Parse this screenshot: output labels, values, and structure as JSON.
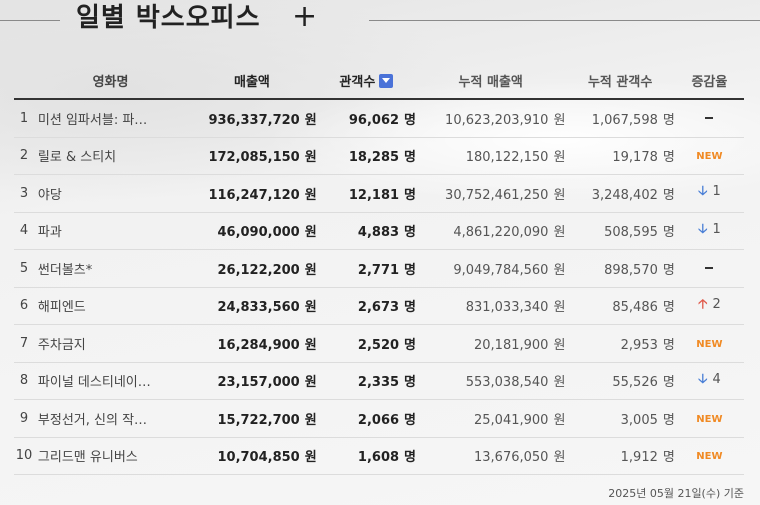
{
  "header": {
    "title": "일별 박스오피스",
    "add_label": "+"
  },
  "table": {
    "columns": {
      "title": "영화명",
      "sales": "매출액",
      "audience": "관객수",
      "cum_sales": "누적 매출액",
      "cum_audience": "누적 관객수",
      "change": "증감율"
    },
    "won_unit": "원",
    "person_unit": "명",
    "rows": [
      {
        "rank": "1",
        "title": "미션 임파서블: 파…",
        "sales": "936,337,720",
        "audience": "96,062",
        "cum_sales": "10,623,203,910",
        "cum_audience": "1,067,598",
        "change_type": "none",
        "change_value": ""
      },
      {
        "rank": "2",
        "title": "릴로 & 스티치",
        "sales": "172,085,150",
        "audience": "18,285",
        "cum_sales": "180,122,150",
        "cum_audience": "19,178",
        "change_type": "new",
        "change_value": "NEW"
      },
      {
        "rank": "3",
        "title": "야당",
        "sales": "116,247,120",
        "audience": "12,181",
        "cum_sales": "30,752,461,250",
        "cum_audience": "3,248,402",
        "change_type": "down",
        "change_value": "1"
      },
      {
        "rank": "4",
        "title": "파과",
        "sales": "46,090,000",
        "audience": "4,883",
        "cum_sales": "4,861,220,090",
        "cum_audience": "508,595",
        "change_type": "down",
        "change_value": "1"
      },
      {
        "rank": "5",
        "title": "썬더볼츠*",
        "sales": "26,122,200",
        "audience": "2,771",
        "cum_sales": "9,049,784,560",
        "cum_audience": "898,570",
        "change_type": "none",
        "change_value": ""
      },
      {
        "rank": "6",
        "title": "해피엔드",
        "sales": "24,833,560",
        "audience": "2,673",
        "cum_sales": "831,033,340",
        "cum_audience": "85,486",
        "change_type": "up",
        "change_value": "2"
      },
      {
        "rank": "7",
        "title": "주차금지",
        "sales": "16,284,900",
        "audience": "2,520",
        "cum_sales": "20,181,900",
        "cum_audience": "2,953",
        "change_type": "new",
        "change_value": "NEW"
      },
      {
        "rank": "8",
        "title": "파이널 데스티네이…",
        "sales": "23,157,000",
        "audience": "2,335",
        "cum_sales": "553,038,540",
        "cum_audience": "55,526",
        "change_type": "down",
        "change_value": "4"
      },
      {
        "rank": "9",
        "title": "부정선거, 신의 작…",
        "sales": "15,722,700",
        "audience": "2,066",
        "cum_sales": "25,041,900",
        "cum_audience": "3,005",
        "change_type": "new",
        "change_value": "NEW"
      },
      {
        "rank": "10",
        "title": "그리드맨 유니버스",
        "sales": "10,704,850",
        "audience": "1,608",
        "cum_sales": "13,676,050",
        "cum_audience": "1,912",
        "change_type": "new",
        "change_value": "NEW"
      }
    ]
  },
  "footer": {
    "date_note": "2025년 05월 21일(수) 기준"
  },
  "icons": {
    "sort": "sort-down-icon",
    "up": "arrow-up-icon",
    "down": "arrow-down-icon",
    "none": "dash-icon"
  },
  "colors": {
    "new": "#f08a24",
    "down": "#4a7fd6",
    "up": "#e05a4b",
    "sort": "#4a72d8"
  }
}
